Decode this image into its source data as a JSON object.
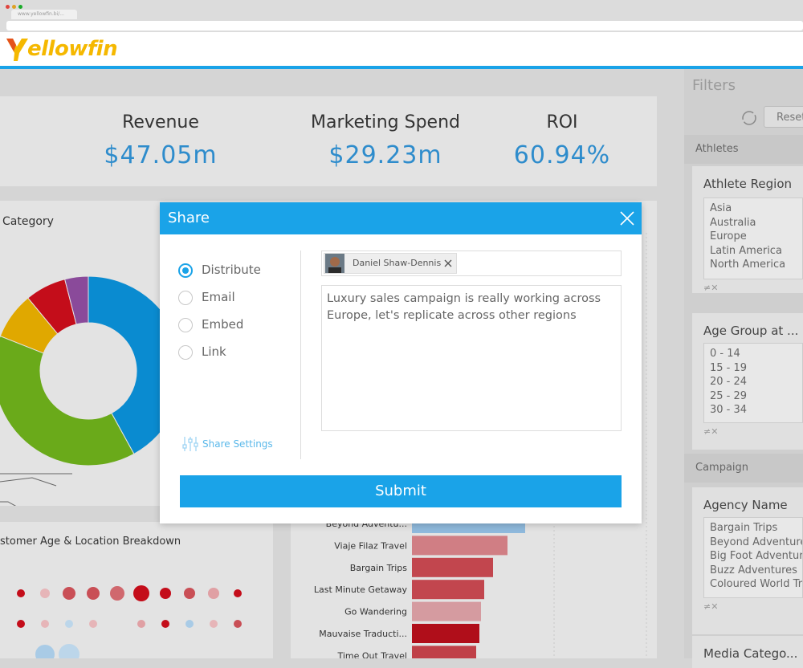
{
  "browser": {
    "url": "www.yellowfin.bi/..."
  },
  "header": {
    "logo": "ellowfin"
  },
  "kpis": [
    {
      "label": "Revenue",
      "value": "$47.05m"
    },
    {
      "label": "Marketing Spend",
      "value": "$29.23m"
    },
    {
      "label": "ROI",
      "value": "60.94%"
    }
  ],
  "donut_panel": {
    "title": "Category",
    "segments": [
      {
        "value": 42,
        "color": "#0a8bd0"
      },
      {
        "value": 39,
        "color": "#6aaa1a"
      },
      {
        "value": 8,
        "color": "#e0a800"
      },
      {
        "value": 7,
        "color": "#c40d1a"
      },
      {
        "value": 4,
        "color": "#8a4a9a"
      }
    ]
  },
  "dots_panel": {
    "title": "stomer Age & Location Breakdown"
  },
  "bar_panel": {
    "categories": [
      "Beyond Adventu...",
      "Viaje Filaz Travel",
      "Bargain Trips",
      "Last Minute Getaway",
      "Go Wandering",
      "Mauvaise Traducti...",
      "Time Out Travel"
    ],
    "values": [
      141,
      119,
      101,
      90,
      86,
      84,
      80
    ],
    "colors": [
      "#8fb9dc",
      "#d07e84",
      "#c2464e",
      "#c2464e",
      "#d59ba0",
      "#b00e1a",
      "#c04048"
    ]
  },
  "share_dialog": {
    "title": "Share",
    "options": [
      "Distribute",
      "Email",
      "Embed",
      "Link"
    ],
    "selected": 0,
    "settings_link": "Share Settings",
    "recipient": "Daniel Shaw-Dennis",
    "message_lines": [
      "Luxury sales campaign is really working across",
      "Europe, let's replicate across other regions"
    ],
    "submit": "Submit"
  },
  "filters": {
    "title": "Filters",
    "reset": "Reset",
    "sections": [
      {
        "title": "Athletes",
        "filters": [
          {
            "title": "Athlete Region",
            "items": [
              "Asia",
              "Australia",
              "Europe",
              "Latin America",
              "North America"
            ]
          },
          {
            "title": "Age Group at ...",
            "items": [
              "0 - 14",
              "15 - 19",
              "20 - 24",
              "25 - 29",
              "30 - 34"
            ]
          }
        ]
      },
      {
        "title": "Campaign",
        "filters": [
          {
            "title": "Agency Name",
            "items": [
              "Bargain Trips",
              "Beyond Adventure T",
              "Big Foot Adventures",
              "Buzz Adventures",
              "Coloured World Tra"
            ]
          },
          {
            "title": "Media Catego...",
            "items": []
          }
        ]
      }
    ]
  }
}
